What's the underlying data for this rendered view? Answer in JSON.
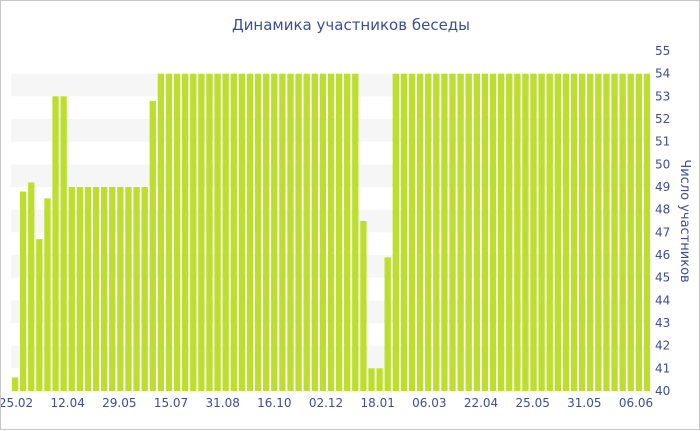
{
  "chart_data": {
    "type": "bar",
    "title": "Динамика участников беседы",
    "ylabel": "Число участников",
    "xlabel": "",
    "ylim": [
      40,
      55
    ],
    "yticks": [
      40,
      41,
      42,
      43,
      44,
      45,
      46,
      47,
      48,
      49,
      50,
      51,
      52,
      53,
      54,
      55
    ],
    "xtick_labels": [
      "25.02",
      "12.04",
      "29.05",
      "15.07",
      "31.08",
      "16.10",
      "02.12",
      "18.01",
      "06.03",
      "22.04",
      "25.05",
      "31.05",
      "06.06"
    ],
    "grid": "horizontal alternating bands",
    "bar_color": "#bede2f",
    "series": [
      {
        "values": [
          40.6,
          48.8,
          49.2,
          46.7,
          48.5,
          53,
          53,
          49,
          49,
          49,
          49,
          49,
          49,
          49,
          49,
          49,
          49,
          52.8,
          54,
          54,
          54,
          54,
          54,
          54,
          54,
          54,
          54,
          54,
          54,
          54,
          54,
          54,
          54,
          54,
          54,
          54,
          54,
          54,
          54,
          54,
          54,
          54,
          54,
          47.5,
          41,
          41,
          45.9,
          54,
          54,
          54,
          54,
          54,
          54,
          54,
          54,
          54,
          54,
          54,
          54,
          54,
          54,
          54,
          54,
          54,
          54,
          54,
          54,
          54,
          54,
          54,
          54,
          54,
          54,
          54,
          54,
          54,
          54,
          54,
          54
        ]
      }
    ]
  }
}
